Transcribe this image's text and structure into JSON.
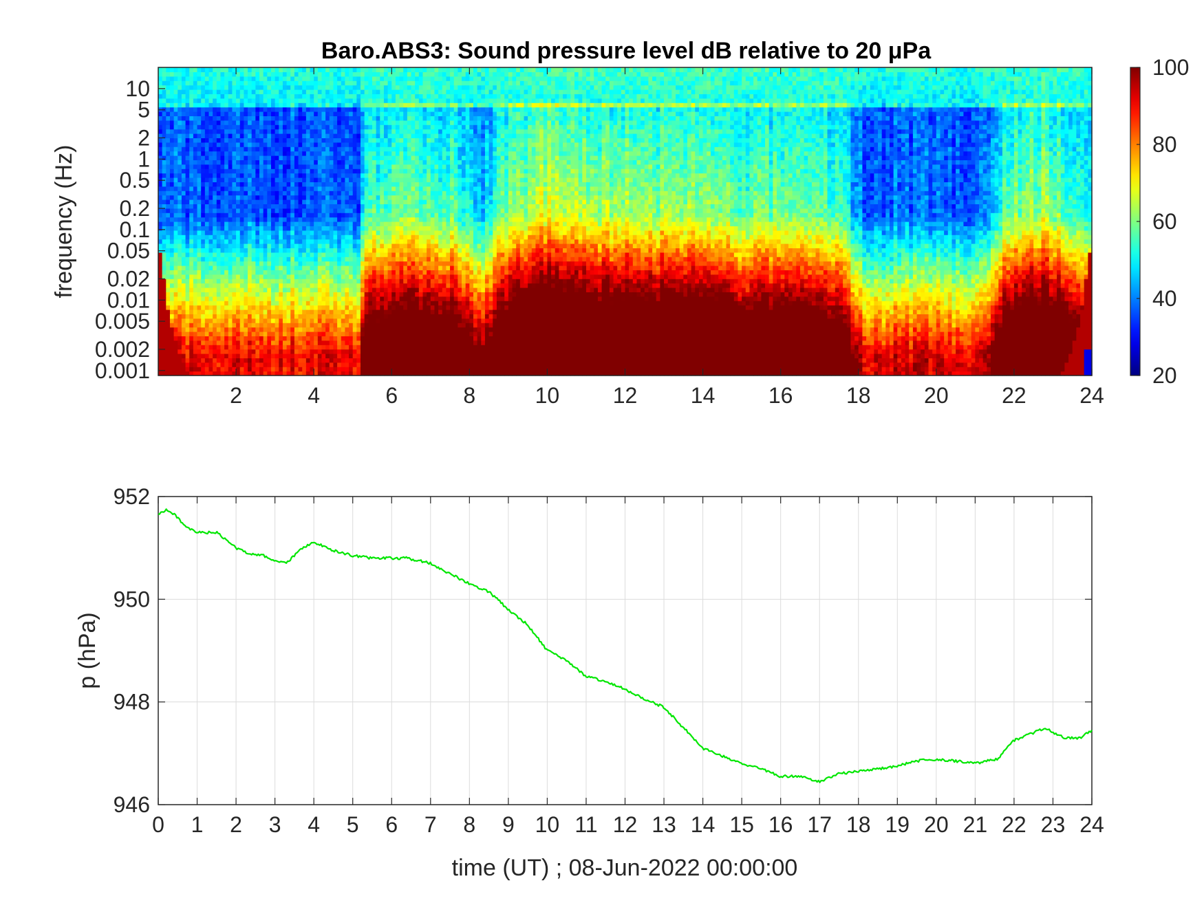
{
  "colors": {
    "background": "#ffffff",
    "axis": "#262626",
    "grid": "#dcdcdc",
    "pressure_line": "#00e600",
    "colormap": "jet"
  },
  "chart_data": [
    {
      "type": "heatmap",
      "title": "Baro.ABS3: Sound pressure level dB relative to 20 μPa",
      "xlabel": "",
      "ylabel": "frequency (Hz)",
      "xlim": [
        0,
        24
      ],
      "ylim": [
        0.00085,
        20
      ],
      "yscale": "log",
      "xticks": [
        "2",
        "4",
        "6",
        "8",
        "10",
        "12",
        "14",
        "16",
        "18",
        "20",
        "22",
        "24"
      ],
      "yticks": [
        "0.001",
        "0.002",
        "0.005",
        "0.01",
        "0.02",
        "0.05",
        "0.1",
        "0.2",
        "0.5",
        "1",
        "2",
        "5",
        "10"
      ],
      "colorbar": {
        "label": "",
        "range": [
          20,
          100
        ],
        "ticks": [
          "20",
          "40",
          "60",
          "80",
          "100"
        ]
      },
      "activity_profile": {
        "time_h": [
          0,
          5.2,
          5.3,
          6.5,
          7.5,
          8.3,
          8.6,
          9.0,
          9.5,
          10.0,
          10.5,
          11.0,
          11.5,
          12.0,
          12.5,
          13.0,
          13.5,
          14.0,
          14.5,
          15.0,
          15.5,
          16.0,
          16.5,
          17.0,
          17.5,
          17.8,
          18.2,
          21.2,
          21.7,
          22.2,
          22.8,
          23.5,
          24.0
        ],
        "level": [
          0.02,
          0.02,
          0.55,
          0.7,
          0.62,
          0.3,
          0.48,
          0.7,
          0.82,
          0.95,
          0.9,
          0.85,
          0.8,
          0.82,
          0.76,
          0.82,
          0.84,
          0.78,
          0.72,
          0.62,
          0.7,
          0.72,
          0.68,
          0.6,
          0.62,
          0.3,
          0.05,
          0.05,
          0.6,
          0.78,
          0.82,
          0.6,
          0.3
        ]
      }
    },
    {
      "type": "line",
      "title": "",
      "xlabel": "time (UT) ; 08-Jun-2022 00:00:00",
      "ylabel": "p (hPa)",
      "xlim": [
        0,
        24
      ],
      "ylim": [
        946,
        952
      ],
      "grid": true,
      "xticks": [
        "0",
        "1",
        "2",
        "3",
        "4",
        "5",
        "6",
        "7",
        "8",
        "9",
        "10",
        "11",
        "12",
        "13",
        "14",
        "15",
        "16",
        "17",
        "18",
        "19",
        "20",
        "21",
        "22",
        "23",
        "24"
      ],
      "yticks": [
        "946",
        "948",
        "950",
        "952"
      ],
      "series": [
        {
          "x": [
            0,
            0.2,
            0.5,
            0.7,
            1.0,
            1.5,
            2.0,
            2.3,
            2.7,
            3.0,
            3.3,
            3.5,
            3.7,
            4.0,
            4.2,
            4.5,
            5.0,
            5.5,
            6.0,
            6.4,
            6.7,
            7.0,
            7.5,
            8.0,
            8.5,
            9.0,
            9.5,
            10.0,
            10.5,
            11.0,
            11.5,
            12.0,
            12.5,
            13.0,
            13.5,
            14.0,
            14.5,
            15.0,
            15.5,
            16.0,
            16.5,
            17.0,
            17.5,
            18.0,
            18.5,
            19.0,
            19.5,
            20.0,
            20.5,
            21.0,
            21.3,
            21.6,
            21.8,
            22.0,
            22.3,
            22.5,
            22.8,
            23.0,
            23.3,
            23.7,
            24.0
          ],
          "y": [
            951.65,
            951.75,
            951.6,
            951.4,
            951.3,
            951.3,
            951.0,
            950.9,
            950.85,
            950.75,
            950.7,
            950.85,
            951.0,
            951.1,
            951.05,
            950.95,
            950.85,
            950.8,
            950.8,
            950.8,
            950.75,
            950.7,
            950.5,
            950.3,
            950.15,
            949.8,
            949.5,
            949.0,
            948.8,
            948.5,
            948.4,
            948.25,
            948.05,
            947.9,
            947.5,
            947.1,
            946.95,
            946.8,
            946.7,
            946.55,
            946.55,
            946.45,
            946.6,
            946.65,
            946.7,
            946.75,
            946.85,
            946.88,
            946.85,
            946.8,
            946.85,
            946.9,
            947.1,
            947.25,
            947.35,
            947.4,
            947.5,
            947.4,
            947.3,
            947.3,
            947.45
          ]
        }
      ]
    }
  ]
}
